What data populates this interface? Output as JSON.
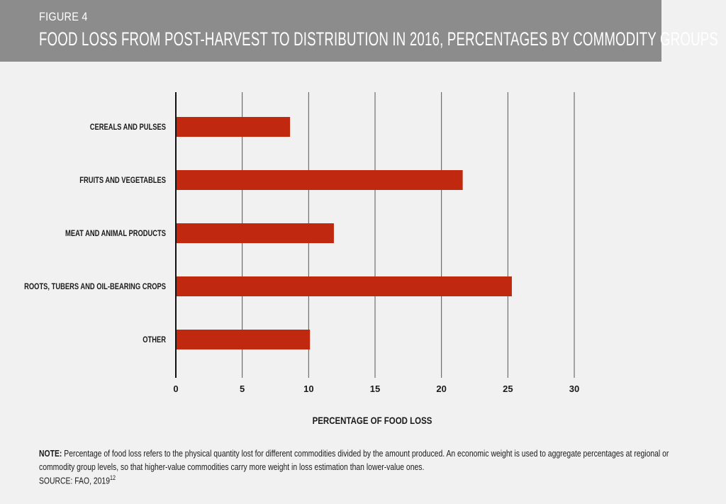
{
  "header": {
    "figure_label": "FIGURE 4",
    "title": "FOOD LOSS FROM POST-HARVEST TO DISTRIBUTION IN 2016, PERCENTAGES BY COMMODITY GROUPS"
  },
  "colors": {
    "header_bg": "#8c8c8c",
    "bar": "#c0280f",
    "background": "#f1f1f1"
  },
  "chart_data": {
    "type": "bar",
    "orientation": "horizontal",
    "title": "FOOD LOSS FROM POST-HARVEST TO DISTRIBUTION IN 2016, PERCENTAGES BY COMMODITY GROUPS",
    "categories": [
      "CEREALS AND PULSES",
      "FRUITS AND VEGETABLES",
      "MEAT AND ANIMAL PRODUCTS",
      "ROOTS, TUBERS AND OIL-BEARING CROPS",
      "OTHER"
    ],
    "values": [
      8.6,
      21.6,
      11.9,
      25.3,
      10.1
    ],
    "xlabel": "PERCENTAGE OF FOOD LOSS",
    "ylabel": "",
    "xlim": [
      0,
      30
    ],
    "xticks": [
      0,
      5,
      10,
      15,
      20,
      25,
      30
    ],
    "grid": true
  },
  "note": {
    "label": "NOTE:",
    "text": "Percentage of food loss refers to the physical quantity lost for different commodities divided by the amount produced. An economic weight is used to aggregate percentages at regional or commodity group levels, so that higher-value commodities carry more weight in loss estimation than lower-value ones.",
    "source": "SOURCE: FAO, 2019",
    "source_ref": "12"
  }
}
